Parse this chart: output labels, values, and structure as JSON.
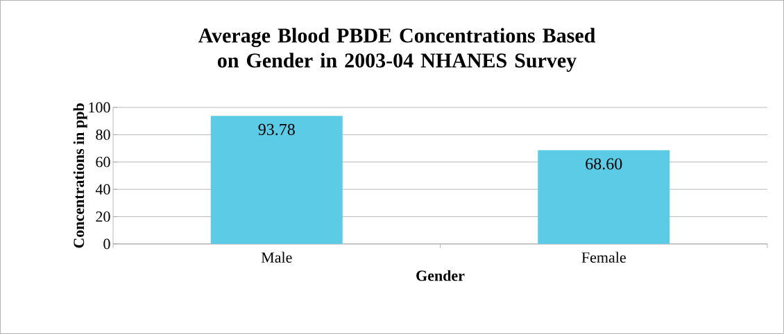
{
  "chart_data": {
    "type": "bar",
    "title": "Average Blood PBDE Concentrations Based on Gender in 2003-04 NHANES Survey",
    "xlabel": "Gender",
    "ylabel": "Concentrations in ppb",
    "categories": [
      "Male",
      "Female"
    ],
    "values": [
      93.78,
      68.6
    ],
    "value_labels": [
      "93.78",
      "68.60"
    ],
    "color": "#5ccbe6",
    "ylim": [
      0,
      100
    ],
    "yticks": [
      0,
      20,
      40,
      60,
      80,
      100
    ],
    "grid": "y"
  }
}
